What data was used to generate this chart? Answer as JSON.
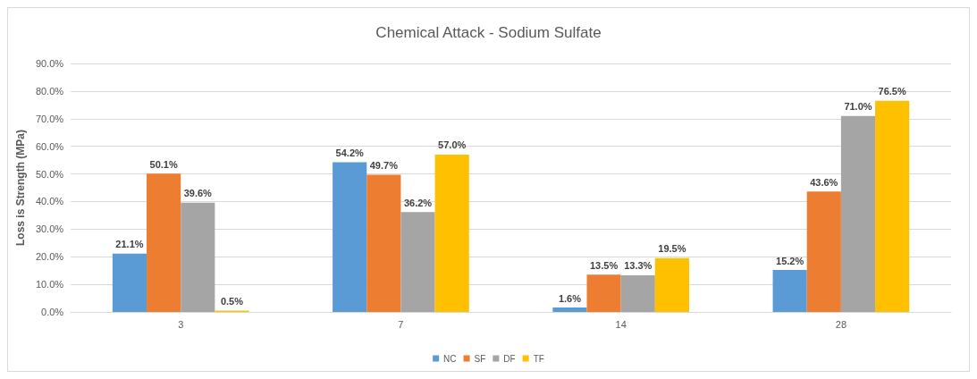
{
  "chart_data": {
    "type": "bar",
    "title": "Chemical Attack - Sodium Sulfate",
    "ylabel": "Loss is Strength (MPa)",
    "categories": [
      "3",
      "7",
      "14",
      "28"
    ],
    "series": [
      {
        "name": "NC",
        "color": "#5b9bd5",
        "values": [
          21.1,
          54.2,
          1.6,
          15.2
        ],
        "value_labels": [
          "21.1%",
          "54.2%",
          "1.6%",
          "15.2%"
        ]
      },
      {
        "name": "SF",
        "color": "#ed7d31",
        "values": [
          50.1,
          49.7,
          13.5,
          43.6
        ],
        "value_labels": [
          "50.1%",
          "49.7%",
          "13.5%",
          "43.6%"
        ]
      },
      {
        "name": "DF",
        "color": "#a5a5a5",
        "values": [
          39.6,
          36.2,
          13.3,
          71.0
        ],
        "value_labels": [
          "39.6%",
          "36.2%",
          "13.3%",
          "71.0%"
        ]
      },
      {
        "name": "TF",
        "color": "#ffc000",
        "values": [
          0.5,
          57.0,
          19.5,
          76.5
        ],
        "value_labels": [
          "0.5%",
          "57.0%",
          "19.5%",
          "76.5%"
        ]
      }
    ],
    "ylim": [
      0,
      90
    ],
    "yticks": [
      {
        "value": 0,
        "label": "0.0%"
      },
      {
        "value": 10,
        "label": "10.0%"
      },
      {
        "value": 20,
        "label": "20.0%"
      },
      {
        "value": 30,
        "label": "30.0%"
      },
      {
        "value": 40,
        "label": "40.0%"
      },
      {
        "value": 50,
        "label": "50.0%"
      },
      {
        "value": 60,
        "label": "60.0%"
      },
      {
        "value": 70,
        "label": "70.0%"
      },
      {
        "value": 80,
        "label": "80.0%"
      },
      {
        "value": 90,
        "label": "90.0%"
      }
    ],
    "grid": "y",
    "legend": "bottom"
  }
}
